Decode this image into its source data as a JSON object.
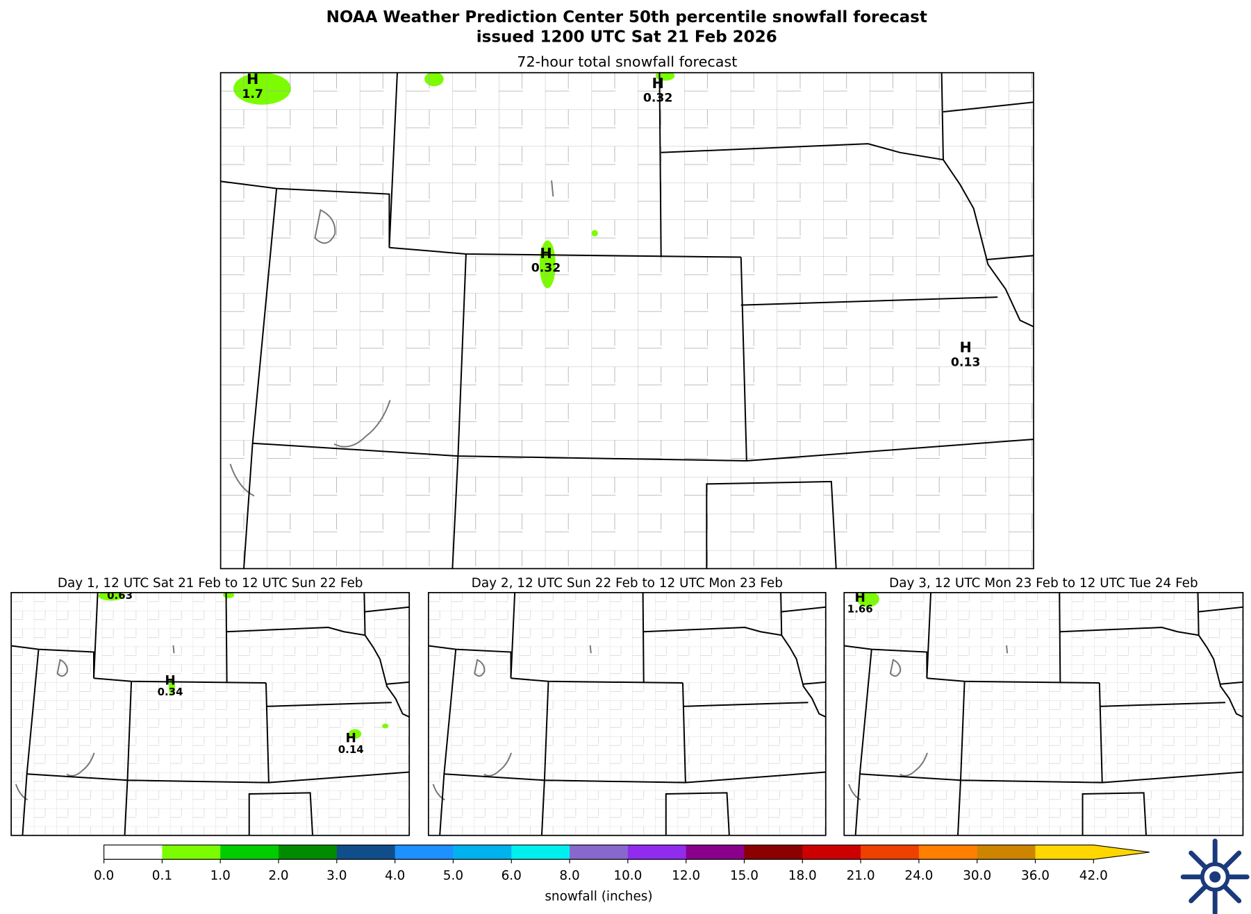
{
  "header": {
    "title": "NOAA Weather Prediction Center 50th percentile snowfall forecast",
    "subtitle": "issued 1200 UTC Sat 21 Feb 2026"
  },
  "panels": [
    {
      "title": "72-hour total snowfall forecast",
      "maxima": [
        {
          "label": "H",
          "value": 1.7
        },
        {
          "label": "H",
          "value": 0.32
        },
        {
          "label": "H",
          "value": 0.32
        },
        {
          "label": "H",
          "value": 0.13
        }
      ]
    },
    {
      "title": "Day 1, 12 UTC Sat 21 Feb to 12 UTC Sun 22 Feb",
      "maxima": [
        {
          "value": 0.63
        },
        {
          "label": "H",
          "value": 0.34
        },
        {
          "label": "H",
          "value": 0.14
        }
      ]
    },
    {
      "title": "Day 2, 12 UTC Sun 22 Feb to 12 UTC Mon 23 Feb",
      "maxima": []
    },
    {
      "title": "Day 3, 12 UTC Mon 23 Feb to 12 UTC Tue 24 Feb",
      "maxima": [
        {
          "label": "H",
          "value": 1.66
        }
      ]
    }
  ],
  "colorbar": {
    "label": "snowfall (inches)",
    "ticks": [
      "0.0",
      "0.1",
      "1.0",
      "2.0",
      "3.0",
      "4.0",
      "5.0",
      "6.0",
      "8.0",
      "10.0",
      "12.0",
      "15.0",
      "18.0",
      "21.0",
      "24.0",
      "30.0",
      "36.0",
      "42.0"
    ],
    "colors": [
      "#ffffff",
      "#7cfc00",
      "#00cd00",
      "#008b00",
      "#104e8b",
      "#1e90ff",
      "#00b2ee",
      "#00eeee",
      "#8968cd",
      "#912cee",
      "#8b008b",
      "#8b0000",
      "#cd0000",
      "#ee4000",
      "#ff7f00",
      "#cd8500",
      "#ffd700"
    ],
    "extend_color": "#ffd700"
  }
}
